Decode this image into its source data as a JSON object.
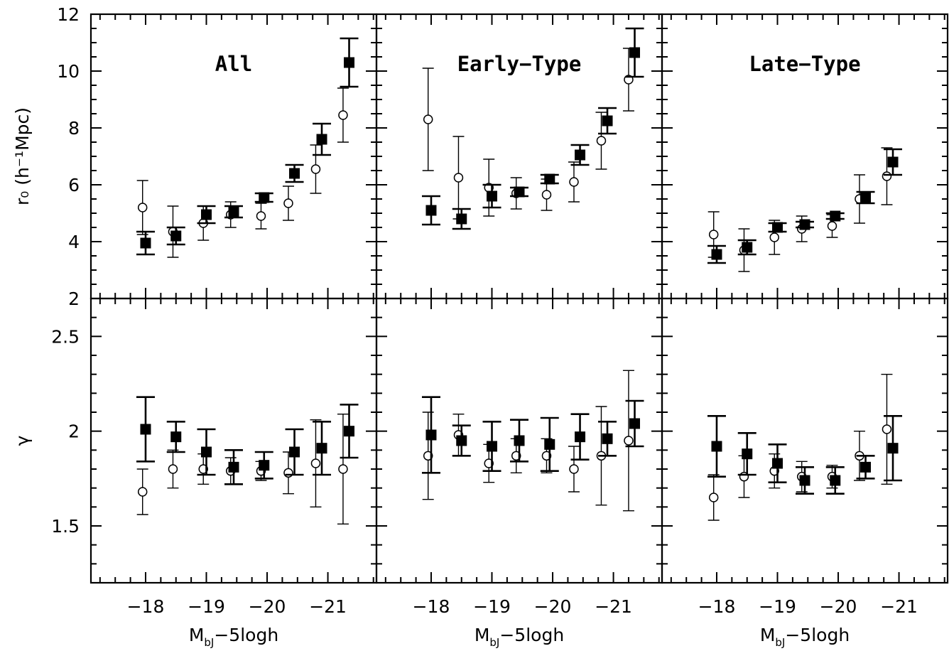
{
  "chart_data": [
    {
      "type": "scatter",
      "title": "All",
      "ylabel": "r₀ (h⁻¹Mpc)",
      "ylim": [
        2,
        12
      ],
      "xlim": [
        -17.1,
        -21.8
      ],
      "xticks": [
        -18,
        -19,
        -20,
        -21
      ],
      "yticks": [
        2,
        4,
        6,
        8,
        10,
        12
      ],
      "series": [
        {
          "marker": "filled-square",
          "x": [
            -18.0,
            -18.5,
            -19.0,
            -19.45,
            -19.95,
            -20.45,
            -20.9,
            -21.35
          ],
          "y": [
            3.95,
            4.2,
            4.95,
            5.05,
            5.55,
            6.4,
            7.6,
            10.3
          ],
          "yerr": [
            0.4,
            0.3,
            0.3,
            0.2,
            0.15,
            0.3,
            0.55,
            0.85
          ]
        },
        {
          "marker": "open-circle",
          "x": [
            -17.95,
            -18.45,
            -18.95,
            -19.4,
            -19.9,
            -20.35,
            -20.8,
            -21.25
          ],
          "y": [
            5.2,
            4.35,
            4.65,
            4.95,
            4.9,
            5.35,
            6.55,
            8.45
          ],
          "yerr": [
            0.95,
            0.9,
            0.6,
            0.45,
            0.45,
            0.6,
            0.85,
            0.95
          ]
        }
      ]
    },
    {
      "type": "scatter",
      "title": "Early−Type",
      "ylim": [
        2,
        12
      ],
      "xlim": [
        -17.1,
        -21.8
      ],
      "xticks": [
        -18,
        -19,
        -20,
        -21
      ],
      "series": [
        {
          "marker": "filled-square",
          "x": [
            -18.0,
            -18.5,
            -19.0,
            -19.45,
            -19.95,
            -20.45,
            -20.9,
            -21.35
          ],
          "y": [
            5.1,
            4.8,
            5.6,
            5.75,
            6.2,
            7.05,
            8.25,
            10.65
          ],
          "yerr": [
            0.5,
            0.35,
            0.4,
            0.15,
            0.15,
            0.35,
            0.45,
            0.85
          ]
        },
        {
          "marker": "open-circle",
          "x": [
            -17.95,
            -18.45,
            -18.95,
            -19.4,
            -19.9,
            -20.35,
            -20.8,
            -21.25
          ],
          "y": [
            8.3,
            6.25,
            5.9,
            5.7,
            5.65,
            6.1,
            7.55,
            9.7
          ],
          "yerr": [
            1.8,
            1.45,
            1.0,
            0.55,
            0.55,
            0.7,
            1.0,
            1.1
          ]
        }
      ]
    },
    {
      "type": "scatter",
      "title": "Late−Type",
      "ylim": [
        2,
        12
      ],
      "xlim": [
        -17.1,
        -21.8
      ],
      "xticks": [
        -18,
        -19,
        -20,
        -21
      ],
      "series": [
        {
          "marker": "filled-square",
          "x": [
            -18.0,
            -18.5,
            -19.0,
            -19.45,
            -19.95,
            -20.45,
            -20.9
          ],
          "y": [
            3.55,
            3.8,
            4.5,
            4.6,
            4.9,
            5.55,
            6.8
          ],
          "yerr": [
            0.3,
            0.25,
            0.15,
            0.1,
            0.1,
            0.2,
            0.45
          ]
        },
        {
          "marker": "open-circle",
          "x": [
            -17.95,
            -18.45,
            -18.95,
            -19.4,
            -19.9,
            -20.35,
            -20.8
          ],
          "y": [
            4.25,
            3.7,
            4.15,
            4.45,
            4.55,
            5.5,
            6.3
          ],
          "yerr": [
            0.8,
            0.75,
            0.6,
            0.45,
            0.4,
            0.85,
            1.0
          ]
        }
      ]
    },
    {
      "type": "scatter",
      "xlabel": "M_bJ−5logh",
      "ylabel": "γ",
      "ylim": [
        1.2,
        2.7
      ],
      "xlim": [
        -17.1,
        -21.8
      ],
      "xticks": [
        -18,
        -19,
        -20,
        -21
      ],
      "yticks": [
        1.5,
        2,
        2.5
      ],
      "series": [
        {
          "marker": "filled-square",
          "x": [
            -18.0,
            -18.5,
            -19.0,
            -19.45,
            -19.95,
            -20.45,
            -20.9,
            -21.35
          ],
          "y": [
            2.01,
            1.97,
            1.89,
            1.81,
            1.82,
            1.89,
            1.91,
            2.0
          ],
          "yerr": [
            0.17,
            0.08,
            0.12,
            0.09,
            0.07,
            0.12,
            0.14,
            0.14
          ]
        },
        {
          "marker": "open-circle",
          "x": [
            -17.95,
            -18.45,
            -18.95,
            -19.4,
            -19.9,
            -20.35,
            -20.8,
            -21.25
          ],
          "y": [
            1.68,
            1.8,
            1.8,
            1.79,
            1.79,
            1.78,
            1.83,
            1.8
          ],
          "yerr": [
            0.12,
            0.1,
            0.08,
            0.07,
            0.05,
            0.11,
            0.23,
            0.29
          ]
        }
      ]
    },
    {
      "type": "scatter",
      "xlabel": "M_bJ−5logh",
      "ylim": [
        1.2,
        2.7
      ],
      "xlim": [
        -17.1,
        -21.8
      ],
      "xticks": [
        -18,
        -19,
        -20,
        -21
      ],
      "series": [
        {
          "marker": "filled-square",
          "x": [
            -18.0,
            -18.5,
            -19.0,
            -19.45,
            -19.95,
            -20.45,
            -20.9,
            -21.35
          ],
          "y": [
            1.98,
            1.95,
            1.92,
            1.95,
            1.93,
            1.97,
            1.96,
            2.04
          ],
          "yerr": [
            0.2,
            0.08,
            0.13,
            0.11,
            0.14,
            0.12,
            0.09,
            0.12
          ]
        },
        {
          "marker": "open-circle",
          "x": [
            -17.95,
            -18.45,
            -18.95,
            -19.4,
            -19.9,
            -20.35,
            -20.8,
            -21.25
          ],
          "y": [
            1.87,
            1.98,
            1.83,
            1.87,
            1.87,
            1.8,
            1.87,
            1.95
          ],
          "yerr": [
            0.23,
            0.11,
            0.1,
            0.09,
            0.09,
            0.12,
            0.26,
            0.37
          ]
        }
      ]
    },
    {
      "type": "scatter",
      "xlabel": "M_bJ−5logh",
      "ylim": [
        1.2,
        2.7
      ],
      "xlim": [
        -17.1,
        -21.8
      ],
      "xticks": [
        -18,
        -19,
        -20,
        -21
      ],
      "series": [
        {
          "marker": "filled-square",
          "x": [
            -18.0,
            -18.5,
            -19.0,
            -19.45,
            -19.95,
            -20.45,
            -20.9
          ],
          "y": [
            1.92,
            1.88,
            1.83,
            1.74,
            1.74,
            1.81,
            1.91
          ],
          "yerr": [
            0.16,
            0.11,
            0.1,
            0.07,
            0.07,
            0.06,
            0.17
          ]
        },
        {
          "marker": "open-circle",
          "x": [
            -17.95,
            -18.45,
            -18.95,
            -19.4,
            -19.9,
            -20.35,
            -20.8
          ],
          "y": [
            1.65,
            1.76,
            1.79,
            1.76,
            1.76,
            1.87,
            2.01
          ],
          "yerr": [
            0.12,
            0.11,
            0.09,
            0.08,
            0.06,
            0.13,
            0.29
          ]
        }
      ]
    }
  ]
}
